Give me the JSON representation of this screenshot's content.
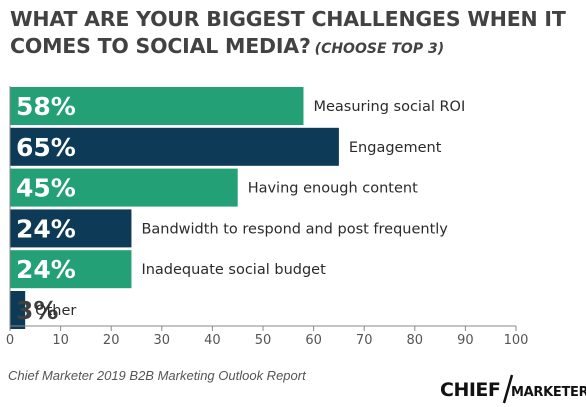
{
  "title": "WHAT ARE YOUR BIGGEST CHALLENGES WHEN IT COMES TO SOCIAL MEDIA?",
  "subtitle": "(CHOOSE TOP 3)",
  "source": "Chief Marketer 2019 B2B Marketing Outlook Report",
  "logo_text": "CHIEF MARKETER",
  "colors": {
    "green": "#23a075",
    "navy": "#0d3b57",
    "text": "#424242"
  },
  "chart_data": {
    "type": "bar",
    "orientation": "horizontal",
    "categories": [
      "Measuring social ROI",
      "Engagement",
      "Having enough content",
      "Bandwidth to respond and post frequently",
      "Inadequate social budget",
      "Other"
    ],
    "values": [
      58,
      65,
      45,
      24,
      24,
      3
    ],
    "value_labels": [
      "58%",
      "65%",
      "45%",
      "24%",
      "24%",
      "3%"
    ],
    "bar_colors": [
      "#23a075",
      "#0d3b57",
      "#23a075",
      "#0d3b57",
      "#23a075",
      "#0d3b57"
    ],
    "xlim": [
      0,
      100
    ],
    "xticks": [
      0,
      10,
      20,
      30,
      40,
      50,
      60,
      70,
      80,
      90,
      100
    ],
    "grid": false,
    "legend": "none"
  }
}
